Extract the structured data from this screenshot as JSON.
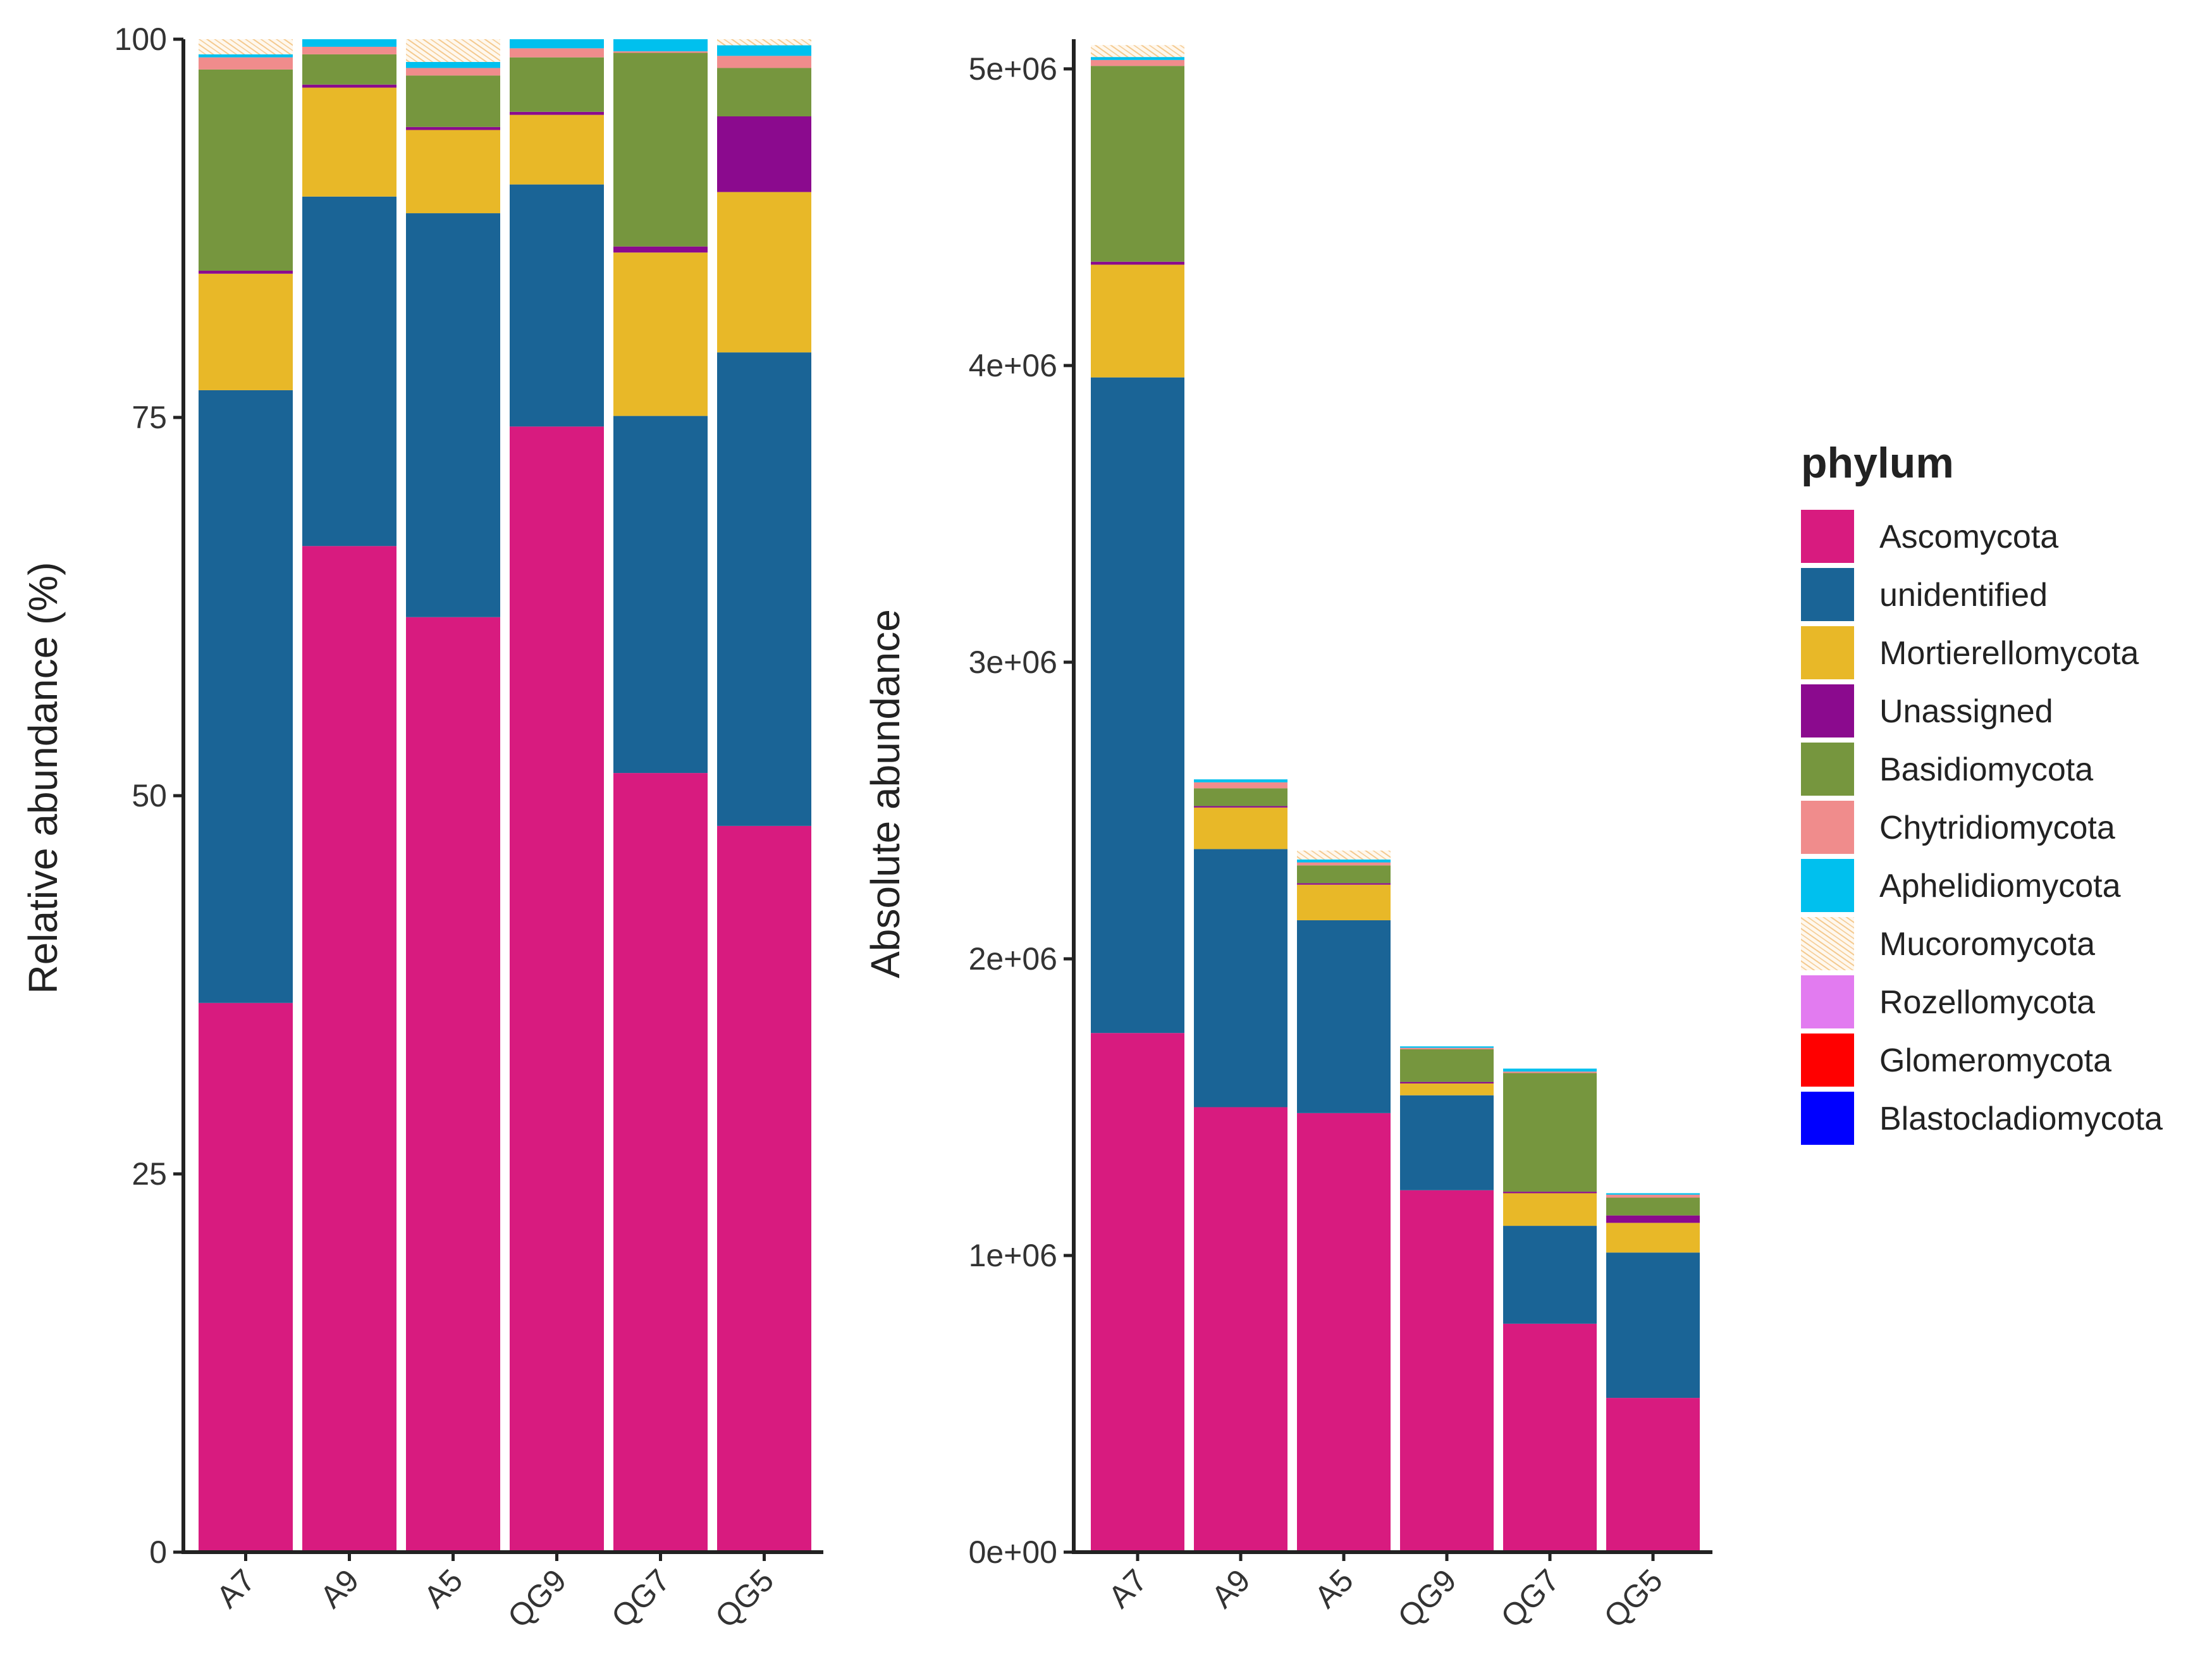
{
  "chart_data": [
    {
      "type": "bar",
      "stacked": true,
      "title": "",
      "xlabel": "",
      "ylabel": "Relative abundance (%)",
      "ylim": [
        0,
        100
      ],
      "yticks": [
        0,
        25,
        50,
        75,
        100
      ],
      "ytick_labels": [
        "0",
        "25",
        "50",
        "75",
        "100"
      ],
      "categories": [
        "A7",
        "A9",
        "A5",
        "QG9",
        "QG7",
        "QG5"
      ],
      "series": [
        {
          "name": "Ascomycota",
          "values": [
            36.3,
            66.5,
            61.8,
            74.4,
            51.5,
            48.0
          ]
        },
        {
          "name": "unidentified",
          "values": [
            40.5,
            23.1,
            26.7,
            16.0,
            23.6,
            31.3
          ]
        },
        {
          "name": "Mortierellomycota",
          "values": [
            7.7,
            7.2,
            5.5,
            4.6,
            10.8,
            10.6
          ]
        },
        {
          "name": "Unassigned",
          "values": [
            0.2,
            0.2,
            0.2,
            0.2,
            0.4,
            5.0
          ]
        },
        {
          "name": "Basidiomycota",
          "values": [
            13.3,
            2.0,
            3.4,
            3.6,
            12.8,
            3.2
          ]
        },
        {
          "name": "Chytridiomycota",
          "values": [
            0.8,
            0.5,
            0.5,
            0.6,
            0.1,
            0.8
          ]
        },
        {
          "name": "Aphelidiomycota",
          "values": [
            0.2,
            0.5,
            0.4,
            0.6,
            0.8,
            0.7
          ]
        },
        {
          "name": "Mucoromycota",
          "values": [
            1.0,
            0.0,
            1.5,
            0.0,
            0.0,
            0.4
          ]
        },
        {
          "name": "Rozellomycota",
          "values": [
            0,
            0,
            0,
            0,
            0,
            0
          ]
        },
        {
          "name": "Glomeromycota",
          "values": [
            0,
            0,
            0,
            0,
            0,
            0
          ]
        },
        {
          "name": "Blastocladiomycota",
          "values": [
            0,
            0,
            0,
            0,
            0,
            0
          ]
        }
      ]
    },
    {
      "type": "bar",
      "stacked": true,
      "title": "",
      "xlabel": "",
      "ylabel": "Absolute abundance",
      "ylim": [
        0,
        5100000
      ],
      "yticks": [
        0,
        1000000,
        2000000,
        3000000,
        4000000,
        5000000
      ],
      "ytick_labels": [
        "0e+00",
        "1e+06",
        "2e+06",
        "3e+06",
        "4e+06",
        "5e+06"
      ],
      "categories": [
        "A7",
        "A9",
        "A5",
        "QG9",
        "QG7",
        "QG5"
      ],
      "series": [
        {
          "name": "Ascomycota",
          "values": [
            1750000,
            1500000,
            1480000,
            1220000,
            770000,
            520000
          ]
        },
        {
          "name": "unidentified",
          "values": [
            2210000,
            870000,
            650000,
            320000,
            330000,
            490000
          ]
        },
        {
          "name": "Mortierellomycota",
          "values": [
            380000,
            140000,
            120000,
            40000,
            110000,
            100000
          ]
        },
        {
          "name": "Unassigned",
          "values": [
            10000,
            5000,
            5000,
            5000,
            5000,
            25000
          ]
        },
        {
          "name": "Basidiomycota",
          "values": [
            660000,
            60000,
            60000,
            110000,
            400000,
            60000
          ]
        },
        {
          "name": "Chytridiomycota",
          "values": [
            20000,
            20000,
            10000,
            5000,
            5000,
            10000
          ]
        },
        {
          "name": "Aphelidiomycota",
          "values": [
            10000,
            10000,
            10000,
            5000,
            10000,
            5000
          ]
        },
        {
          "name": "Mucoromycota",
          "values": [
            40000,
            0,
            30000,
            0,
            0,
            0
          ]
        },
        {
          "name": "Rozellomycota",
          "values": [
            0,
            0,
            0,
            0,
            0,
            0
          ]
        },
        {
          "name": "Glomeromycota",
          "values": [
            0,
            0,
            0,
            0,
            0,
            0
          ]
        },
        {
          "name": "Blastocladiomycota",
          "values": [
            0,
            0,
            0,
            0,
            0,
            0
          ]
        }
      ]
    }
  ],
  "legend": {
    "title": "phylum",
    "placement": "right",
    "items": [
      {
        "label": "Ascomycota",
        "color": "#D81B7F"
      },
      {
        "label": "unidentified",
        "color": "#1A6496"
      },
      {
        "label": "Mortierellomycota",
        "color": "#E8B828"
      },
      {
        "label": "Unassigned",
        "color": "#8B0A8E"
      },
      {
        "label": "Basidiomycota",
        "color": "#76963E"
      },
      {
        "label": "Chytridiomycota",
        "color": "#F08C8C"
      },
      {
        "label": "Aphelidiomycota",
        "color": "#00C0EE"
      },
      {
        "label": "Mucoromycota",
        "color": "#FDF1E1"
      },
      {
        "label": "Rozellomycota",
        "color": "#E27BF0"
      },
      {
        "label": "Glomeromycota",
        "color": "#FF0000"
      },
      {
        "label": "Blastocladiomycota",
        "color": "#0000FF"
      }
    ]
  }
}
